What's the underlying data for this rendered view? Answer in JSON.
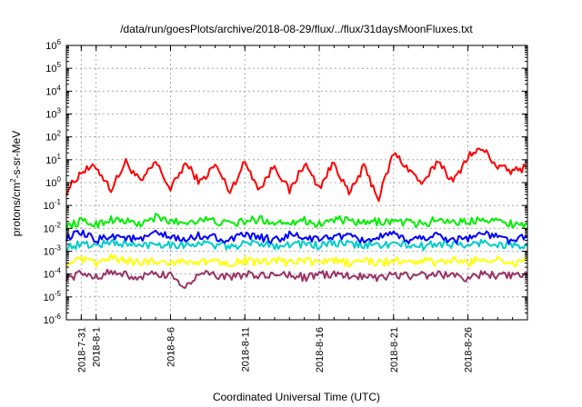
{
  "chart_data": {
    "type": "line",
    "title": "/data/run/goesPlots/archive/2018-08-29/flux/../flux/31daysMoonFluxes.txt",
    "xlabel": "Coordinated Universal Time (UTC)",
    "ylabel": {
      "prefix": "protons/cm",
      "sup": "2",
      "suffix": "-s-sr-MeV"
    },
    "x_start": "2018-07-30",
    "x_end": "2018-08-30",
    "x_ticks": [
      "2018-7-31",
      "2018-8-1",
      "2018-8-6",
      "2018-8-11",
      "2018-8-16",
      "2018-8-21",
      "2018-8-26"
    ],
    "x_tick_dates": [
      "2018-07-31",
      "2018-08-01",
      "2018-08-06",
      "2018-08-11",
      "2018-08-16",
      "2018-08-21",
      "2018-08-26"
    ],
    "y_scale": "log",
    "ylim": [
      1e-06,
      1000000.0
    ],
    "y_ticks": [
      {
        "base": "10",
        "exp": "-6",
        "value": 1e-06
      },
      {
        "base": "10",
        "exp": "-5",
        "value": 1e-05
      },
      {
        "base": "10",
        "exp": "-4",
        "value": 0.0001
      },
      {
        "base": "10",
        "exp": "-3",
        "value": 0.001
      },
      {
        "base": "10",
        "exp": "-2",
        "value": 0.01
      },
      {
        "base": "10",
        "exp": "-1",
        "value": 0.1
      },
      {
        "base": "10",
        "exp": "0",
        "value": 1
      },
      {
        "base": "10",
        "exp": "1",
        "value": 10
      },
      {
        "base": "10",
        "exp": "2",
        "value": 100
      },
      {
        "base": "10",
        "exp": "3",
        "value": 1000
      },
      {
        "base": "10",
        "exp": "4",
        "value": 10000
      },
      {
        "base": "10",
        "exp": "5",
        "value": 100000
      },
      {
        "base": "10",
        "exp": "6",
        "value": 1000000
      }
    ],
    "grid": true,
    "dates": [
      "2018-07-30",
      "2018-07-31",
      "2018-08-01",
      "2018-08-02",
      "2018-08-03",
      "2018-08-04",
      "2018-08-05",
      "2018-08-06",
      "2018-08-07",
      "2018-08-08",
      "2018-08-09",
      "2018-08-10",
      "2018-08-11",
      "2018-08-12",
      "2018-08-13",
      "2018-08-14",
      "2018-08-15",
      "2018-08-16",
      "2018-08-17",
      "2018-08-18",
      "2018-08-19",
      "2018-08-20",
      "2018-08-21",
      "2018-08-22",
      "2018-08-23",
      "2018-08-24",
      "2018-08-25",
      "2018-08-26",
      "2018-08-27",
      "2018-08-28",
      "2018-08-29",
      "2018-08-30"
    ],
    "series": [
      {
        "color": "#ff0000",
        "values": [
          0.4,
          3.0,
          5.0,
          0.5,
          8.0,
          1.0,
          8.0,
          0.5,
          7.0,
          1.0,
          6.0,
          0.4,
          8.0,
          0.5,
          6.0,
          0.4,
          7.0,
          0.6,
          8.0,
          0.3,
          5.0,
          0.2,
          20.0,
          4.0,
          0.8,
          10.0,
          1.0,
          15.0,
          30.0,
          5.0,
          3.0,
          5.0
        ]
      },
      {
        "color": "#00ee00",
        "values": [
          0.012,
          0.02,
          0.015,
          0.025,
          0.02,
          0.015,
          0.03,
          0.02,
          0.018,
          0.025,
          0.02,
          0.015,
          0.02,
          0.025,
          0.018,
          0.02,
          0.022,
          0.015,
          0.025,
          0.02,
          0.016,
          0.02,
          0.02,
          0.018,
          0.015,
          0.025,
          0.02,
          0.018,
          0.03,
          0.02,
          0.016,
          0.015
        ]
      },
      {
        "color": "#00cccc",
        "values": [
          0.0015,
          0.002,
          0.0018,
          0.0025,
          0.002,
          0.0017,
          0.0022,
          0.002,
          0.0019,
          0.0023,
          0.0018,
          0.0016,
          0.002,
          0.0024,
          0.0018,
          0.002,
          0.0021,
          0.0017,
          0.0022,
          0.002,
          0.0018,
          0.0019,
          0.002,
          0.0018,
          0.0016,
          0.0022,
          0.002,
          0.0017,
          0.0025,
          0.002,
          0.0018,
          0.0017
        ]
      },
      {
        "color": "#0000ff",
        "values": [
          0.004,
          0.006,
          0.003,
          0.005,
          0.004,
          0.003,
          0.006,
          0.004,
          0.003,
          0.005,
          0.004,
          0.003,
          0.005,
          0.004,
          0.003,
          0.005,
          0.004,
          0.003,
          0.005,
          0.004,
          0.003,
          0.004,
          0.005,
          0.003,
          0.004,
          0.005,
          0.003,
          0.004,
          0.006,
          0.004,
          0.003,
          0.004
        ]
      },
      {
        "color": "#ffff00",
        "values": [
          0.0003,
          0.0004,
          0.0003,
          0.0005,
          0.0004,
          0.0003,
          0.0004,
          0.0003,
          0.0004,
          0.0003,
          0.0004,
          0.0003,
          0.0004,
          0.0003,
          0.0004,
          0.0003,
          0.0004,
          0.0003,
          0.0004,
          0.0003,
          0.0004,
          0.0003,
          0.0004,
          0.0003,
          0.0004,
          0.0003,
          0.0004,
          0.0003,
          0.0005,
          0.0004,
          0.0003,
          0.0004
        ]
      },
      {
        "color": "#993366",
        "values": [
          7e-05,
          0.0001,
          8e-05,
          0.00012,
          9e-05,
          7e-05,
          0.0001,
          8e-05,
          3e-05,
          0.0001,
          9e-05,
          7e-05,
          0.0001,
          8e-05,
          9e-05,
          0.0001,
          7e-05,
          9e-05,
          0.0001,
          8e-05,
          9e-05,
          7e-05,
          0.0001,
          8e-05,
          9e-05,
          0.0001,
          8e-05,
          7e-05,
          0.0001,
          9e-05,
          8e-05,
          9e-05
        ]
      }
    ]
  }
}
